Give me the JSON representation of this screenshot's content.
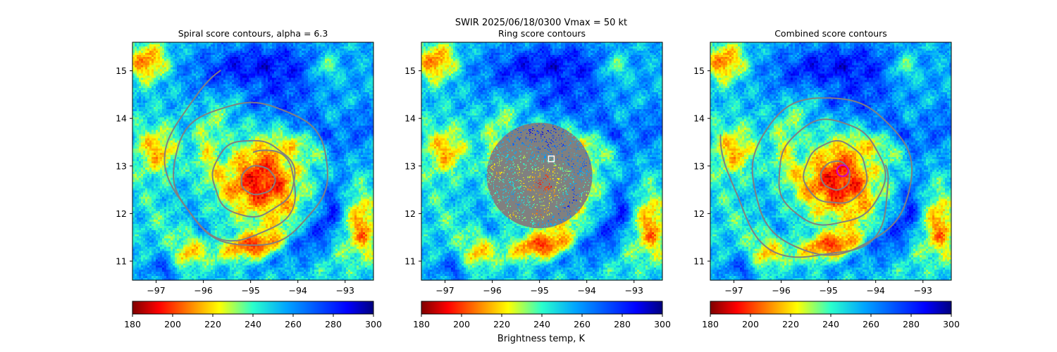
{
  "suptitle": "SWIR  2025/06/18/0300    Vmax = 50 kt",
  "colorbar": {
    "min": 180,
    "max": 300,
    "ticks": [
      180,
      200,
      220,
      240,
      260,
      280,
      300
    ],
    "label": "Brightness temp, K",
    "colormap": "jet_r"
  },
  "chart_data": [
    {
      "type": "heatmap",
      "title": "Spiral score contours, alpha =  6.3",
      "xlim": [
        -97.5,
        -92.4
      ],
      "ylim": [
        10.6,
        15.6
      ],
      "xticks": [
        -97,
        -96,
        -95,
        -94,
        -93
      ],
      "yticks": [
        11,
        12,
        13,
        14,
        15
      ],
      "xtick_labels": [
        "−97",
        "−96",
        "−95",
        "−94",
        "−93"
      ],
      "ytick_labels": [
        "11",
        "12",
        "13",
        "14",
        "15"
      ],
      "contour_color": "#808080",
      "center": [
        -94.8,
        12.9
      ]
    },
    {
      "type": "heatmap",
      "title": "Ring score contours",
      "xlim": [
        -97.5,
        -92.4
      ],
      "ylim": [
        10.6,
        15.6
      ],
      "xticks": [
        -97,
        -96,
        -95,
        -94,
        -93
      ],
      "yticks": [
        11,
        12,
        13,
        14,
        15
      ],
      "xtick_labels": [
        "−97",
        "−96",
        "−95",
        "−94",
        "−93"
      ],
      "ytick_labels": [
        "11",
        "12",
        "13",
        "14",
        "15"
      ],
      "contour_color": "#808080",
      "marker": {
        "shape": "square",
        "lon": -94.75,
        "lat": 13.15,
        "color": "#ffffff"
      }
    },
    {
      "type": "heatmap",
      "title": "Combined score contours",
      "xlim": [
        -97.5,
        -92.4
      ],
      "ylim": [
        10.6,
        15.6
      ],
      "xticks": [
        -97,
        -96,
        -95,
        -94,
        -93
      ],
      "yticks": [
        11,
        12,
        13,
        14,
        15
      ],
      "xtick_labels": [
        "−97",
        "−96",
        "−95",
        "−94",
        "−93"
      ],
      "ytick_labels": [
        "11",
        "12",
        "13",
        "14",
        "15"
      ],
      "contour_color": "#808080",
      "marker": {
        "shape": "circle",
        "lon": -94.7,
        "lat": 12.9,
        "color": "#cc00cc"
      }
    }
  ]
}
